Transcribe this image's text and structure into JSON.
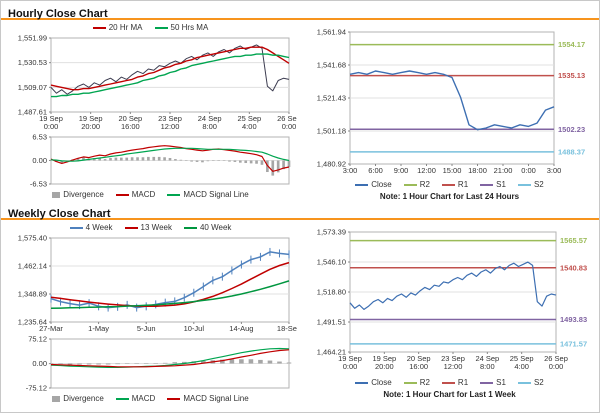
{
  "theme": {
    "accent": "#f7941d",
    "grid": "#e0e0e0",
    "plot_border": "#b3b3b3",
    "tick_text": "#333333"
  },
  "sections": [
    {
      "title": "Hourly Close Chart"
    },
    {
      "title": "Weekly Close Chart"
    }
  ],
  "chart_data": [
    {
      "id": "hourly-price",
      "type": "line",
      "title": "Hourly Close Chart",
      "ylim": [
        1487.61,
        1551.99
      ],
      "yticks": [
        {
          "v": 1551.99,
          "label": "1,551.99"
        },
        {
          "v": 1530.53,
          "label": "1,530.53"
        },
        {
          "v": 1509.07,
          "label": "1,509.07"
        },
        {
          "v": 1487.61,
          "label": "1,487.61"
        }
      ],
      "xticks": [
        [
          "19 Sep",
          "0:00"
        ],
        [
          "19 Sep",
          "20:00"
        ],
        [
          "20 Sep",
          "16:00"
        ],
        [
          "23 Sep",
          "12:00"
        ],
        [
          "24 Sep",
          "8:00"
        ],
        [
          "25 Sep",
          "4:00"
        ],
        [
          "26 Sep",
          "0:00"
        ]
      ],
      "legend": [
        {
          "label": "20 Hr MA",
          "color": "#c00000",
          "shape": "line"
        },
        {
          "label": "50 Hrs MA",
          "color": "#00a550",
          "shape": "line"
        }
      ],
      "series": [
        {
          "name": "Close",
          "color": "#3c3c50",
          "width": 1,
          "values": [
            1509,
            1504,
            1507,
            1503,
            1506,
            1510,
            1512,
            1509,
            1513,
            1511,
            1515,
            1517,
            1514,
            1518,
            1516,
            1520,
            1523,
            1521,
            1525,
            1524,
            1528,
            1527,
            1530,
            1532,
            1530,
            1534,
            1536,
            1533,
            1537,
            1539,
            1536,
            1540,
            1542,
            1539,
            1543,
            1545,
            1542,
            1544,
            1546,
            1543,
            1510,
            1506,
            1515,
            1517,
            1516
          ]
        },
        {
          "name": "20 Hr MA",
          "color": "#c00000",
          "width": 1.4,
          "values": [
            1511,
            1510,
            1509,
            1508,
            1507,
            1507,
            1508,
            1508,
            1509,
            1510,
            1511,
            1512,
            1513,
            1514,
            1515,
            1516,
            1518,
            1519,
            1521,
            1522,
            1524,
            1526,
            1527,
            1529,
            1530,
            1532,
            1533,
            1535,
            1536,
            1537,
            1538,
            1539,
            1540,
            1541,
            1542,
            1543,
            1543,
            1544,
            1544,
            1544,
            1542,
            1539,
            1536,
            1533,
            1530
          ]
        },
        {
          "name": "50 Hrs MA",
          "color": "#00a550",
          "width": 1.4,
          "values": [
            1501,
            1501,
            1502,
            1502,
            1503,
            1503,
            1504,
            1504,
            1505,
            1506,
            1507,
            1508,
            1509,
            1510,
            1511,
            1512,
            1513,
            1515,
            1516,
            1517,
            1519,
            1520,
            1522,
            1523,
            1525,
            1526,
            1528,
            1529,
            1530,
            1531,
            1532,
            1533,
            1534,
            1535,
            1536,
            1536,
            1537,
            1537,
            1538,
            1538,
            1538,
            1537,
            1537,
            1536,
            1535
          ]
        }
      ]
    },
    {
      "id": "hourly-macd",
      "type": "macd",
      "ylim": [
        -6.53,
        6.53
      ],
      "yticks": [
        {
          "v": 6.53,
          "label": "6.53"
        },
        {
          "v": 0,
          "label": "0.00"
        },
        {
          "v": -6.53,
          "label": "-6.53"
        }
      ],
      "legend": [
        {
          "label": "Divergence",
          "color": "#a6a6a6",
          "shape": "bar"
        },
        {
          "label": "MACD",
          "color": "#c00000",
          "shape": "line"
        },
        {
          "label": "MACD Signal Line",
          "color": "#00a550",
          "shape": "line"
        }
      ],
      "series": [
        {
          "name": "Divergence",
          "kind": "bar",
          "color": "#a6a6a6",
          "values": [
            0.2,
            -0.4,
            -0.7,
            -0.2,
            0.3,
            0.7,
            0.9,
            0.5,
            0.7,
            0.8,
            0.4,
            0.7,
            0.8,
            0.8,
            0.8,
            0.9,
            0.9,
            0.9,
            1.0,
            1.0,
            1.0,
            0.9,
            0.7,
            0.4,
            0.2,
            -0.1,
            -0.3,
            -0.4,
            -0.5,
            -0.2,
            0.0,
            0.1,
            -0.1,
            -0.3,
            -0.4,
            -0.6,
            -0.7,
            -0.8,
            -0.9,
            -1.2,
            -3.2,
            -4.2,
            -3.3,
            -2.4,
            -1.8
          ]
        },
        {
          "name": "MACD",
          "kind": "line",
          "color": "#c00000",
          "width": 1.2,
          "values": [
            0.4,
            -0.3,
            -0.8,
            -0.4,
            0.1,
            0.6,
            1.0,
            0.8,
            1.2,
            1.5,
            1.3,
            1.8,
            2.1,
            2.3,
            2.6,
            2.9,
            3.1,
            3.3,
            3.6,
            3.8,
            4.0,
            4.1,
            4.0,
            3.8,
            3.6,
            3.3,
            3.1,
            2.9,
            2.7,
            2.9,
            3.1,
            3.2,
            3.0,
            2.8,
            2.6,
            2.3,
            2.1,
            1.9,
            1.6,
            1.1,
            -1.4,
            -3.0,
            -2.6,
            -2.1,
            -1.8
          ]
        },
        {
          "name": "MACD Signal Line",
          "kind": "line",
          "color": "#00a550",
          "width": 1.2,
          "values": [
            0.2,
            0.1,
            -0.1,
            -0.2,
            -0.2,
            -0.1,
            0.1,
            0.3,
            0.5,
            0.7,
            0.9,
            1.1,
            1.3,
            1.5,
            1.8,
            2.0,
            2.2,
            2.4,
            2.6,
            2.8,
            3.0,
            3.2,
            3.3,
            3.4,
            3.4,
            3.4,
            3.4,
            3.3,
            3.2,
            3.1,
            3.1,
            3.1,
            3.1,
            3.1,
            3.0,
            2.9,
            2.8,
            2.7,
            2.5,
            2.3,
            1.8,
            1.2,
            0.7,
            0.3,
            0.0
          ]
        }
      ]
    },
    {
      "id": "day-pivot",
      "type": "line",
      "note": "Note: 1 Hour Chart for Last 24 Hours",
      "ylim": [
        1480.92,
        1561.94
      ],
      "yticks": [
        {
          "v": 1561.94,
          "label": "1,561.94"
        },
        {
          "v": 1541.68,
          "label": "1,541.68"
        },
        {
          "v": 1521.43,
          "label": "1,521.43"
        },
        {
          "v": 1501.18,
          "label": "1,501.18"
        },
        {
          "v": 1480.92,
          "label": "1,480.92"
        }
      ],
      "xticks": [
        "3:00",
        "6:00",
        "9:00",
        "12:00",
        "15:00",
        "18:00",
        "21:00",
        "0:00",
        "3:00"
      ],
      "pivots": [
        {
          "name": "R2",
          "value": 1554.17,
          "label": "1554.17",
          "color": "#9bbb59"
        },
        {
          "name": "R1",
          "value": 1535.13,
          "label": "1535.13",
          "color": "#c0504d"
        },
        {
          "name": "S1",
          "value": 1502.23,
          "label": "1502.23",
          "color": "#8064a2"
        },
        {
          "name": "S2",
          "value": 1488.37,
          "label": "1488.37",
          "color": "#79c1dd"
        }
      ],
      "legend": [
        {
          "label": "Close",
          "color": "#3d6fb2",
          "shape": "line"
        },
        {
          "label": "R2",
          "color": "#9bbb59",
          "shape": "line"
        },
        {
          "label": "R1",
          "color": "#c0504d",
          "shape": "line"
        },
        {
          "label": "S1",
          "color": "#8064a2",
          "shape": "line"
        },
        {
          "label": "S2",
          "color": "#79c1dd",
          "shape": "line"
        }
      ],
      "series": [
        {
          "name": "Close",
          "color": "#3d6fb2",
          "width": 1.4,
          "values": [
            1536,
            1537,
            1536,
            1538,
            1537,
            1536,
            1537,
            1538,
            1537,
            1536,
            1537,
            1536,
            1534,
            1522,
            1505,
            1502,
            1503,
            1505,
            1504,
            1503,
            1505,
            1504,
            1506,
            1514,
            1516
          ]
        }
      ]
    },
    {
      "id": "weekly-price",
      "type": "line",
      "title": "Weekly Close Chart",
      "ylim": [
        1235.64,
        1575.4
      ],
      "yticks": [
        {
          "v": 1575.4,
          "label": "1,575.40"
        },
        {
          "v": 1462.14,
          "label": "1,462.14"
        },
        {
          "v": 1348.89,
          "label": "1,348.89"
        },
        {
          "v": 1235.64,
          "label": "1,235.64"
        }
      ],
      "xticks": [
        "27-Mar",
        "1-May",
        "5-Jun",
        "10-Jul",
        "14-Aug",
        "18-Sep"
      ],
      "legend": [
        {
          "label": "4 Week",
          "color": "#4f81bd",
          "shape": "line"
        },
        {
          "label": "13 Week",
          "color": "#c00000",
          "shape": "line"
        },
        {
          "label": "40 Week",
          "color": "#00963f",
          "shape": "line"
        }
      ],
      "series": [
        {
          "name": "4 Week",
          "color": "#4f81bd",
          "width": 1.5,
          "markers": true,
          "values": [
            1330,
            1318,
            1310,
            1304,
            1312,
            1299,
            1294,
            1297,
            1305,
            1294,
            1299,
            1307,
            1314,
            1319,
            1334,
            1354,
            1379,
            1404,
            1419,
            1444,
            1468,
            1488,
            1499,
            1519,
            1513,
            1509
          ]
        },
        {
          "name": "13 Week",
          "color": "#c00000",
          "width": 1.5,
          "values": [
            1336,
            1331,
            1326,
            1321,
            1316,
            1312,
            1308,
            1305,
            1302,
            1300,
            1299,
            1299,
            1301,
            1304,
            1309,
            1317,
            1327,
            1339,
            1354,
            1371,
            1389,
            1409,
            1429,
            1449,
            1464,
            1476
          ]
        },
        {
          "name": "40 Week",
          "color": "#00963f",
          "width": 1.5,
          "values": [
            1291,
            1292,
            1293,
            1294,
            1295,
            1296,
            1297,
            1298,
            1300,
            1301,
            1303,
            1305,
            1308,
            1311,
            1314,
            1318,
            1323,
            1328,
            1334,
            1341,
            1349,
            1358,
            1368,
            1379,
            1390,
            1402
          ]
        }
      ]
    },
    {
      "id": "weekly-macd",
      "type": "macd",
      "ylim": [
        -75.12,
        75.12
      ],
      "yticks": [
        {
          "v": 75.12,
          "label": "75.12"
        },
        {
          "v": 0,
          "label": "0.00"
        },
        {
          "v": -75.12,
          "label": "-75.12"
        }
      ],
      "legend": [
        {
          "label": "Divergence",
          "color": "#a6a6a6",
          "shape": "bar"
        },
        {
          "label": "MACD",
          "color": "#00a550",
          "shape": "line"
        },
        {
          "label": "MACD Signal Line",
          "color": "#c00000",
          "shape": "line"
        }
      ],
      "series": [
        {
          "name": "Divergence",
          "kind": "bar",
          "color": "#a6a6a6",
          "values": [
            -2,
            -2,
            -3,
            -3,
            -3,
            -3,
            -3,
            -2,
            -1,
            0,
            1,
            1,
            2,
            4,
            5,
            7,
            8,
            10,
            12,
            13,
            13,
            13,
            11,
            9,
            6,
            3
          ]
        },
        {
          "name": "MACD",
          "kind": "line",
          "color": "#00a550",
          "width": 1.2,
          "values": [
            -5,
            -6,
            -8,
            -9,
            -10,
            -11,
            -12,
            -12,
            -11,
            -10,
            -9,
            -8,
            -6,
            -3,
            0,
            4,
            9,
            15,
            21,
            27,
            33,
            38,
            42,
            45,
            46,
            45
          ]
        },
        {
          "name": "MACD Signal Line",
          "kind": "line",
          "color": "#c00000",
          "width": 1.2,
          "values": [
            -3,
            -4,
            -5,
            -6,
            -7,
            -8,
            -9,
            -10,
            -10,
            -10,
            -10,
            -9,
            -8,
            -7,
            -5,
            -3,
            1,
            5,
            9,
            14,
            20,
            25,
            31,
            36,
            40,
            42
          ]
        }
      ]
    },
    {
      "id": "week-pivot",
      "type": "line",
      "note": "Note: 1 Hour Chart for Last 1 Week",
      "ylim": [
        1464.21,
        1573.39
      ],
      "yticks": [
        {
          "v": 1573.39,
          "label": "1,573.39"
        },
        {
          "v": 1546.1,
          "label": "1,546.10"
        },
        {
          "v": 1518.8,
          "label": "1,518.80"
        },
        {
          "v": 1491.51,
          "label": "1,491.51"
        },
        {
          "v": 1464.21,
          "label": "1,464.21"
        }
      ],
      "xticks": [
        [
          "19 Sep",
          "0:00"
        ],
        [
          "19 Sep",
          "20:00"
        ],
        [
          "20 Sep",
          "16:00"
        ],
        [
          "23 Sep",
          "12:00"
        ],
        [
          "24 Sep",
          "8:00"
        ],
        [
          "25 Sep",
          "4:00"
        ],
        [
          "26 Sep",
          "0:00"
        ]
      ],
      "pivots": [
        {
          "name": "R2",
          "value": 1565.57,
          "label": "1565.57",
          "color": "#9bbb59"
        },
        {
          "name": "R1",
          "value": 1540.83,
          "label": "1540.83",
          "color": "#c0504d"
        },
        {
          "name": "S1",
          "value": 1493.83,
          "label": "1493.83",
          "color": "#8064a2"
        },
        {
          "name": "S2",
          "value": 1471.57,
          "label": "1471.57",
          "color": "#79c1dd"
        }
      ],
      "legend": [
        {
          "label": "Close",
          "color": "#3d6fb2",
          "shape": "line"
        },
        {
          "label": "R2",
          "color": "#9bbb59",
          "shape": "line"
        },
        {
          "label": "R1",
          "color": "#c0504d",
          "shape": "line"
        },
        {
          "label": "S1",
          "color": "#8064a2",
          "shape": "line"
        },
        {
          "label": "S2",
          "color": "#79c1dd",
          "shape": "line"
        }
      ],
      "series": [
        {
          "name": "Close",
          "color": "#3d6fb2",
          "width": 1.2,
          "values": [
            1509,
            1504,
            1507,
            1503,
            1506,
            1510,
            1512,
            1509,
            1513,
            1511,
            1515,
            1517,
            1514,
            1518,
            1516,
            1520,
            1523,
            1521,
            1525,
            1524,
            1528,
            1527,
            1530,
            1532,
            1530,
            1534,
            1536,
            1533,
            1537,
            1539,
            1536,
            1540,
            1542,
            1539,
            1543,
            1545,
            1542,
            1544,
            1546,
            1543,
            1510,
            1506,
            1515,
            1517,
            1516
          ]
        }
      ]
    }
  ]
}
